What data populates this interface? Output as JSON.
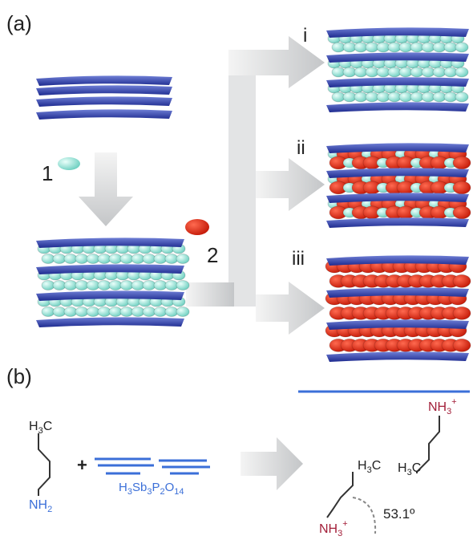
{
  "panel_a": {
    "label": "(a)",
    "steps": [
      "1",
      "2"
    ],
    "products": [
      "i",
      "ii",
      "iii"
    ]
  },
  "panel_b": {
    "label": "(b)",
    "plus": "+",
    "amine_ch3": [
      "H",
      "3",
      "C"
    ],
    "amine_nh2": [
      "NH",
      "2"
    ],
    "host": [
      "H",
      "3",
      "Sb",
      "3",
      "P",
      "2",
      "O",
      "14"
    ],
    "upper_nh3": [
      "NH",
      "3",
      "+"
    ],
    "upper_ch3": [
      "H",
      "3",
      "C"
    ],
    "lower_ch3": [
      "H",
      "3",
      "C"
    ],
    "lower_nh3": [
      "NH",
      "3",
      "+"
    ],
    "angle": "53.1º"
  }
}
